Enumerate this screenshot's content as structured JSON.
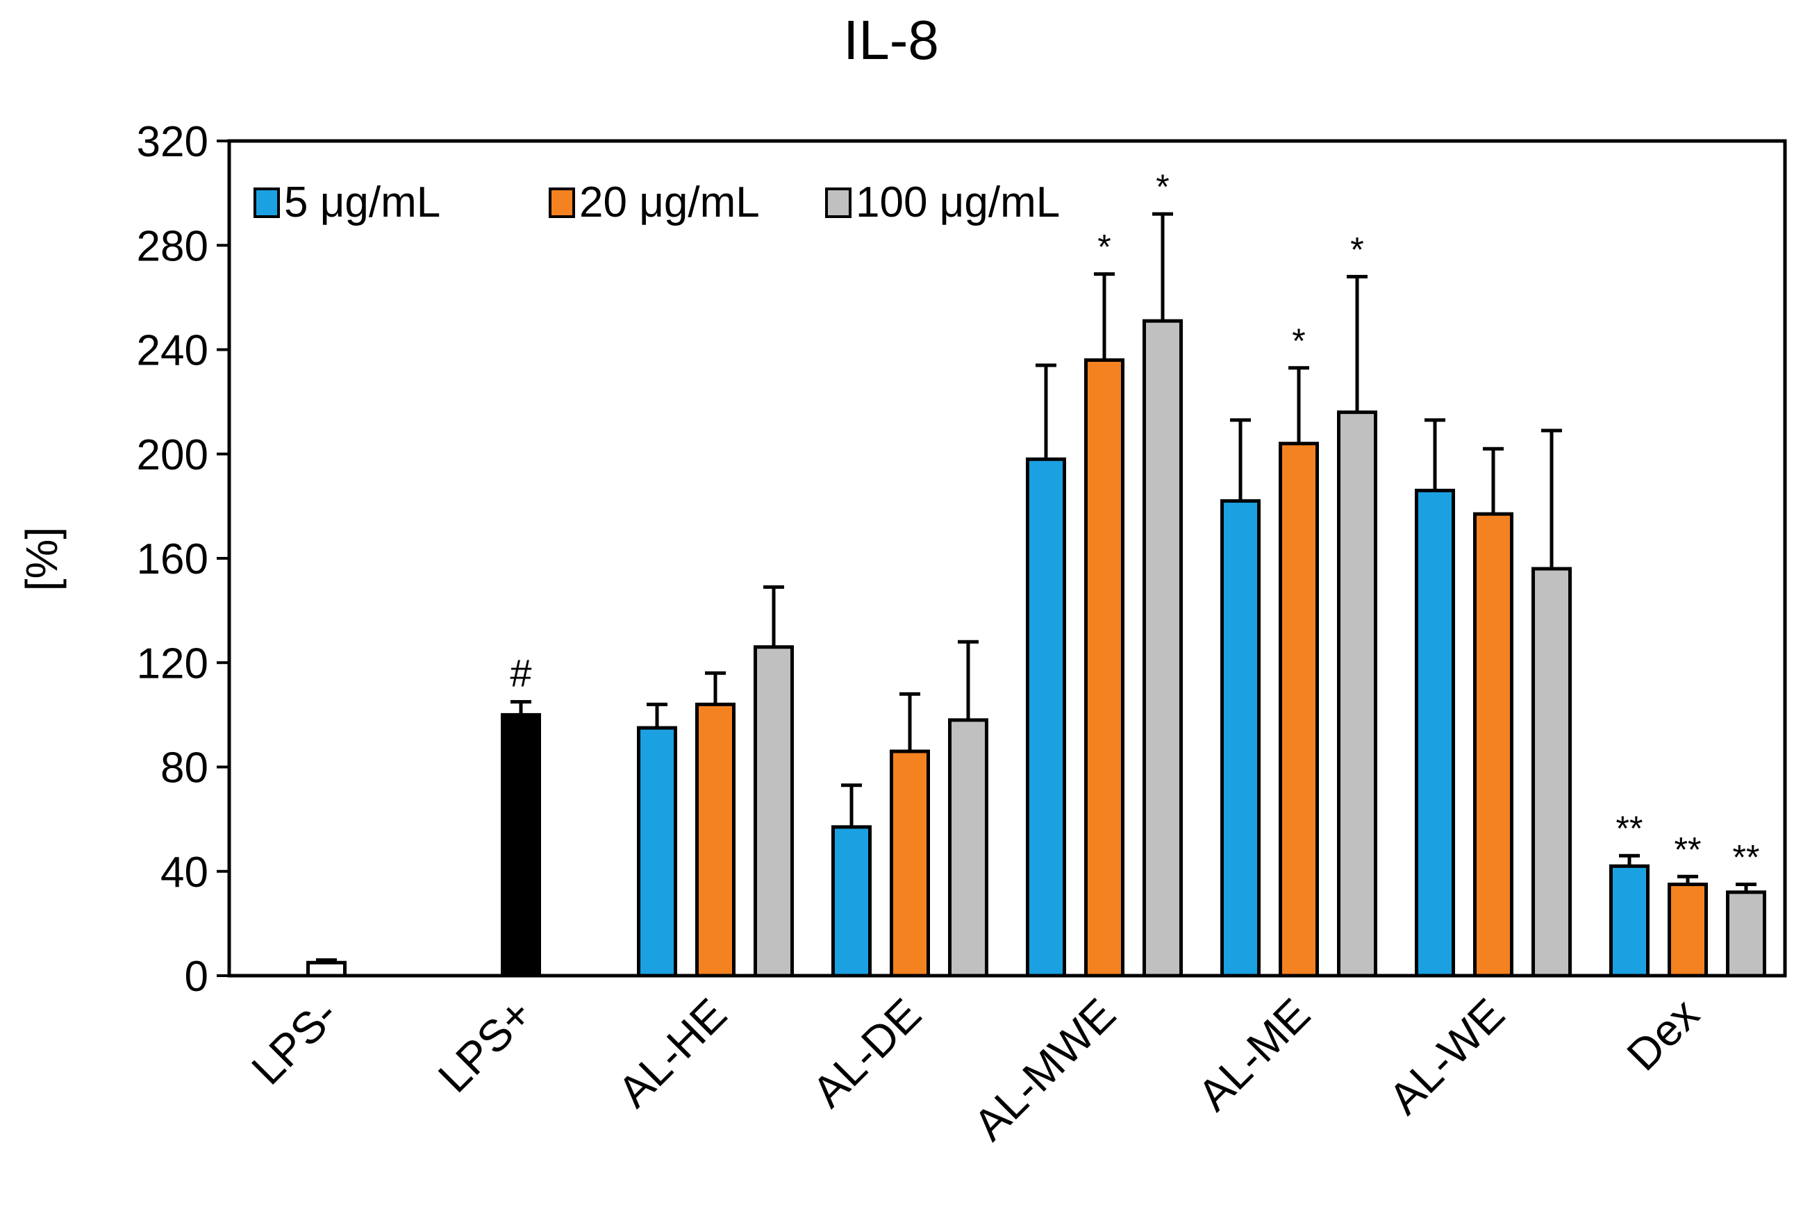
{
  "chart_data": {
    "type": "bar",
    "title": "IL-8",
    "xlabel": "",
    "ylabel": "[%]",
    "ylim": [
      0,
      320
    ],
    "yticks": [
      0,
      40,
      80,
      120,
      160,
      200,
      240,
      280,
      320
    ],
    "grid": false,
    "legend_position": "top-left",
    "categories": [
      "LPS-",
      "LPS+",
      "AL-HE",
      "AL-DE",
      "AL-MWE",
      "AL-ME",
      "AL-WE",
      "Dex"
    ],
    "controls": [
      {
        "category": "LPS-",
        "value": 5,
        "error": 1,
        "color": "#ffffff",
        "annotation": ""
      },
      {
        "category": "LPS+",
        "value": 100,
        "error": 5,
        "color": "#000000",
        "annotation": "#"
      }
    ],
    "series": [
      {
        "name": "5 μg/mL",
        "color": "#1ba1e2",
        "values": [
          null,
          null,
          95,
          57,
          198,
          182,
          186,
          42
        ],
        "errors": [
          null,
          null,
          9,
          16,
          36,
          31,
          27,
          4
        ],
        "annotations": [
          "",
          "",
          "",
          "",
          "",
          "",
          "",
          "**"
        ]
      },
      {
        "name": "20 μg/mL",
        "color": "#f58220",
        "values": [
          null,
          null,
          104,
          86,
          236,
          204,
          177,
          35
        ],
        "errors": [
          null,
          null,
          12,
          22,
          33,
          29,
          25,
          3
        ],
        "annotations": [
          "",
          "",
          "",
          "",
          "*",
          "*",
          "",
          "**"
        ]
      },
      {
        "name": "100 μg/mL",
        "color": "#c0c0c0",
        "values": [
          null,
          null,
          126,
          98,
          251,
          216,
          156,
          32
        ],
        "errors": [
          null,
          null,
          23,
          30,
          41,
          52,
          53,
          3
        ],
        "annotations": [
          "",
          "",
          "",
          "",
          "*",
          "*",
          "",
          "**"
        ]
      }
    ]
  }
}
